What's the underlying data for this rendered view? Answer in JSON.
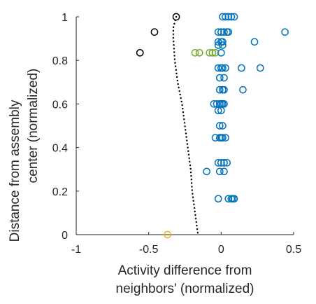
{
  "chart_data": {
    "type": "scatter",
    "xlabel": [
      "Activity difference from",
      "neighbors' (normalized)"
    ],
    "ylabel": [
      "Distance from assembly",
      "center (normalized)"
    ],
    "xlim": [
      -1,
      0.5
    ],
    "ylim": [
      0,
      1
    ],
    "xticks": [
      -1,
      -0.5,
      0,
      0.5
    ],
    "yticks": [
      0,
      0.2,
      0.4,
      0.6,
      0.8,
      1
    ],
    "xtick_labels": [
      "-1",
      "-0.5",
      "0",
      "0.5"
    ],
    "ytick_labels": [
      "0",
      "0.2",
      "0.4",
      "0.6",
      "0.8",
      "1"
    ],
    "grid": false,
    "series": [
      {
        "color": "#000000",
        "marker": "open-circle",
        "points": [
          [
            -0.31,
            1.0
          ],
          [
            -0.46,
            0.93
          ],
          [
            -0.56,
            0.835
          ]
        ]
      },
      {
        "color": "#77ac30",
        "marker": "open-circle",
        "points": [
          [
            -0.18,
            0.835
          ],
          [
            -0.15,
            0.835
          ],
          [
            -0.08,
            0.835
          ],
          [
            -0.06,
            0.835
          ],
          [
            -0.04,
            0.835
          ]
        ]
      },
      {
        "color": "#edb120",
        "marker": "open-circle",
        "points": [
          [
            -0.37,
            0.0
          ]
        ]
      },
      {
        "color": "#0072bd",
        "marker": "open-circle",
        "points": [
          [
            0.01,
            1.0
          ],
          [
            0.03,
            1.0
          ],
          [
            0.05,
            1.0
          ],
          [
            0.07,
            1.0
          ],
          [
            0.09,
            1.0
          ],
          [
            -0.02,
            0.93
          ],
          [
            0.0,
            0.93
          ],
          [
            0.02,
            0.93
          ],
          [
            0.04,
            0.93
          ],
          [
            0.05,
            0.93
          ],
          [
            0.44,
            0.93
          ],
          [
            -0.02,
            0.885
          ],
          [
            0.0,
            0.885
          ],
          [
            0.01,
            0.885
          ],
          [
            0.23,
            0.885
          ],
          [
            -0.02,
            0.87
          ],
          [
            0.01,
            0.87
          ],
          [
            0.0,
            0.835
          ],
          [
            -0.02,
            0.765
          ],
          [
            0.0,
            0.765
          ],
          [
            0.01,
            0.765
          ],
          [
            0.03,
            0.765
          ],
          [
            0.14,
            0.765
          ],
          [
            0.27,
            0.765
          ],
          [
            -0.01,
            0.72
          ],
          [
            0.02,
            0.72
          ],
          [
            -0.01,
            0.665
          ],
          [
            0.01,
            0.665
          ],
          [
            0.02,
            0.665
          ],
          [
            0.15,
            0.665
          ],
          [
            -0.05,
            0.6
          ],
          [
            -0.03,
            0.6
          ],
          [
            -0.01,
            0.6
          ],
          [
            0.0,
            0.6
          ],
          [
            0.01,
            0.6
          ],
          [
            0.02,
            0.6
          ],
          [
            -0.02,
            0.57
          ],
          [
            0.0,
            0.57
          ],
          [
            -0.01,
            0.5
          ],
          [
            0.01,
            0.5
          ],
          [
            -0.04,
            0.445
          ],
          [
            -0.01,
            0.445
          ],
          [
            0.0,
            0.445
          ],
          [
            0.01,
            0.445
          ],
          [
            0.03,
            0.445
          ],
          [
            -0.02,
            0.33
          ],
          [
            0.0,
            0.33
          ],
          [
            0.02,
            0.33
          ],
          [
            0.04,
            0.33
          ],
          [
            -0.1,
            0.29
          ],
          [
            -0.01,
            0.29
          ],
          [
            0.02,
            0.29
          ],
          [
            -0.02,
            0.165
          ],
          [
            0.05,
            0.165
          ],
          [
            0.07,
            0.165
          ],
          [
            0.08,
            0.165
          ],
          [
            0.09,
            0.165
          ]
        ]
      }
    ],
    "trend_line": {
      "style": "dotted",
      "color": "#000000",
      "points": [
        [
          -0.31,
          1.0
        ],
        [
          -0.33,
          0.95
        ],
        [
          -0.33,
          0.9
        ],
        [
          -0.32,
          0.8
        ],
        [
          -0.3,
          0.7
        ],
        [
          -0.27,
          0.6
        ],
        [
          -0.25,
          0.5
        ],
        [
          -0.23,
          0.4
        ],
        [
          -0.21,
          0.3
        ],
        [
          -0.2,
          0.2
        ],
        [
          -0.18,
          0.1
        ],
        [
          -0.16,
          0.0
        ]
      ]
    }
  }
}
